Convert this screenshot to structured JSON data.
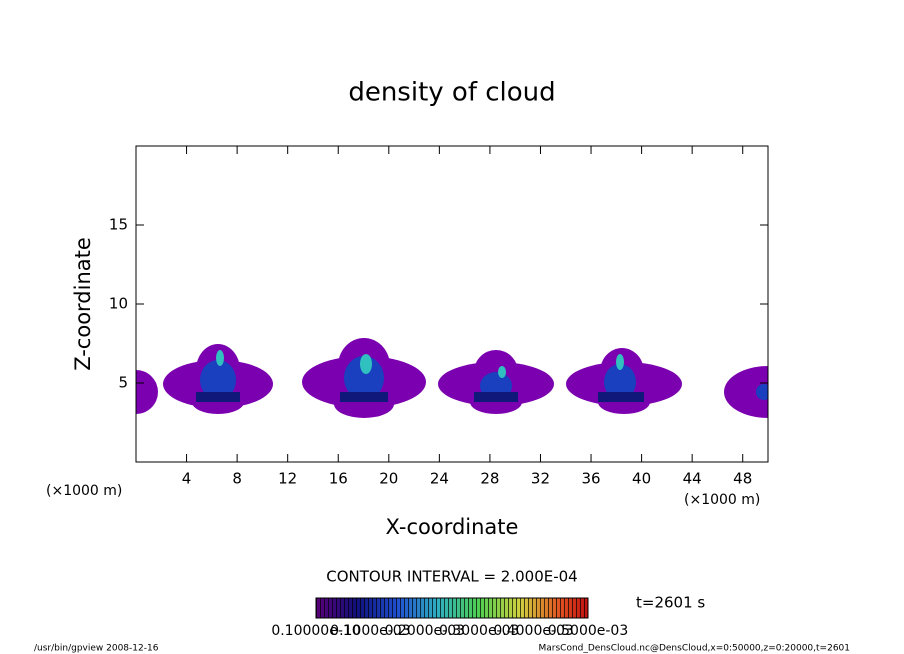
{
  "chart_data": {
    "type": "contour",
    "title": "density of cloud",
    "x_label": "X-coordinate",
    "y_label": "Z-coordinate",
    "x_unit": "(×1000 m)",
    "y_unit": "(×1000 m)",
    "xlim": [
      0,
      50
    ],
    "xticks": [
      4,
      8,
      12,
      16,
      20,
      24,
      28,
      32,
      36,
      40,
      44,
      48
    ],
    "ylim": [
      0,
      20
    ],
    "yticks": [
      5,
      10,
      15
    ],
    "contour_interval": "CONTOUR INTERVAL = 2.000E-04",
    "time_label": "t=2601 s",
    "colorbar_labels": [
      "0.10000e-10",
      "0.1000e-03",
      "0.2000e-03",
      "0.3000e-03",
      "0.4000e-03",
      "0.5000e-03"
    ],
    "footer_left": "/usr/bin/gpview   2008-12-16",
    "footer_right": "MarsCond_DensCloud.nc@DensCloud,x=0:50000,z=0:20000,t=2601"
  }
}
